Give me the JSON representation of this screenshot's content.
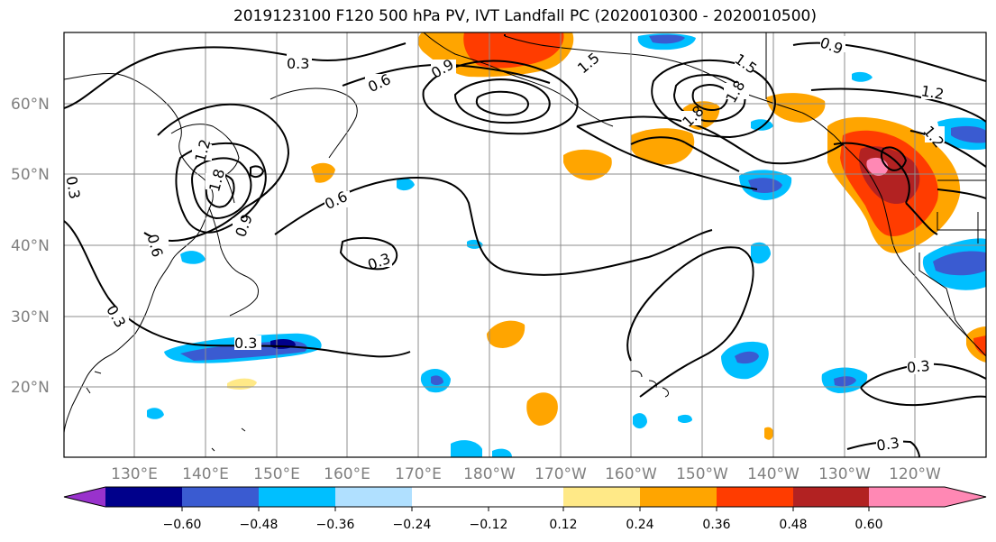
{
  "title": "2019123100 F120 500 hPa PV, IVT Landfall PC (2020010300 - 2020010500)",
  "lat_labels": [
    "60°N",
    "50°N",
    "40°N",
    "30°N",
    "20°N"
  ],
  "lon_labels": [
    "130°E",
    "140°E",
    "150°E",
    "160°E",
    "170°E",
    "180°W",
    "170°W",
    "160°W",
    "150°W",
    "140°W",
    "130°W",
    "120°W"
  ],
  "contour_labels": [
    "0.3",
    "0.6",
    "0.9",
    "1.5",
    "1.8",
    "0.9",
    "1.2",
    "1.5",
    "0.3",
    "1.8",
    "1.2",
    "0.6",
    "0.6",
    "0.9",
    "0.3",
    "0.3",
    "0.3",
    "0.3",
    "0.3",
    "1.2",
    "1.8"
  ],
  "colorbar": {
    "tick_labels": [
      "−0.60",
      "−0.48",
      "−0.36",
      "−0.24",
      "−0.12",
      "0.12",
      "0.24",
      "0.36",
      "0.48",
      "0.60"
    ],
    "colors": [
      "#9932cc",
      "#00008b",
      "#3a5bd1",
      "#00bfff",
      "#b0e0ff",
      "#ffffff",
      "#ffe987",
      "#ffa500",
      "#ff3c00",
      "#b22222",
      "#ff88b4"
    ]
  }
}
